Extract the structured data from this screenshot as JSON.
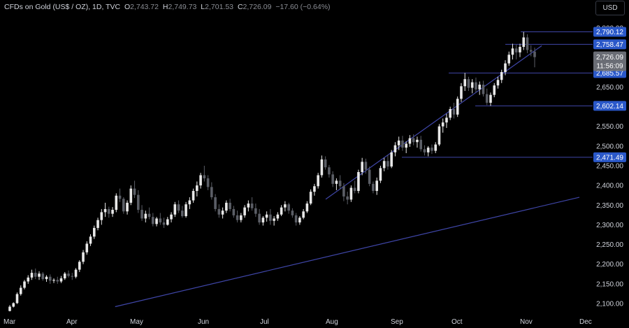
{
  "header": {
    "symbol": "CFDs on Gold (US$ / OZ), 1D, TVC",
    "open_label": "O",
    "open": "2,743.72",
    "high_label": "H",
    "high": "2,749.73",
    "low_label": "L",
    "low": "2,701.53",
    "close_label": "C",
    "close": "2,726.09",
    "change": "−17.60 (−0.64%)",
    "currency": "USD"
  },
  "chart_data": {
    "type": "candlestick",
    "x_labels": [
      "Mar",
      "Apr",
      "May",
      "Jun",
      "Jul",
      "Aug",
      "Sep",
      "Oct",
      "Nov",
      "Dec"
    ],
    "y_ticks": [
      "2,100.00",
      "2,150.00",
      "2,200.00",
      "2,250.00",
      "2,300.00",
      "2,350.00",
      "2,400.00",
      "2,450.00",
      "2,500.00",
      "2,550.00",
      "2,600.00",
      "2,650.00",
      "2,700.00",
      "2,750.00",
      "2,800.00"
    ],
    "y_tick_values": [
      2100,
      2150,
      2200,
      2250,
      2300,
      2350,
      2400,
      2450,
      2500,
      2550,
      2600,
      2650,
      2700,
      2750,
      2800
    ],
    "ylim": [
      2092,
      2812
    ],
    "grid": false,
    "price_levels": [
      {
        "value": 2790.12,
        "label": "2,790.12"
      },
      {
        "value": 2758.47,
        "label": "2,758.47"
      },
      {
        "value": 2685.57,
        "label": "2,685.57"
      },
      {
        "value": 2602.14,
        "label": "2,602.14"
      },
      {
        "value": 2471.49,
        "label": "2,471.49"
      }
    ],
    "last_price": {
      "value": 2726.09,
      "label": "2,726.09",
      "countdown": "11:56:09"
    },
    "candles": [
      [
        2081,
        2096,
        2080,
        2092
      ],
      [
        2092,
        2103,
        2090,
        2101
      ],
      [
        2101,
        2128,
        2099,
        2124
      ],
      [
        2124,
        2146,
        2120,
        2140
      ],
      [
        2140,
        2160,
        2136,
        2156
      ],
      [
        2156,
        2172,
        2150,
        2166
      ],
      [
        2166,
        2186,
        2160,
        2178
      ],
      [
        2178,
        2189,
        2162,
        2168
      ],
      [
        2168,
        2182,
        2160,
        2176
      ],
      [
        2176,
        2180,
        2158,
        2162
      ],
      [
        2162,
        2172,
        2155,
        2168
      ],
      [
        2168,
        2174,
        2150,
        2158
      ],
      [
        2158,
        2164,
        2152,
        2160
      ],
      [
        2160,
        2168,
        2150,
        2156
      ],
      [
        2156,
        2170,
        2152,
        2164
      ],
      [
        2164,
        2180,
        2160,
        2176
      ],
      [
        2176,
        2184,
        2166,
        2170
      ],
      [
        2170,
        2178,
        2160,
        2168
      ],
      [
        2168,
        2190,
        2164,
        2186
      ],
      [
        2186,
        2210,
        2180,
        2206
      ],
      [
        2206,
        2236,
        2200,
        2230
      ],
      [
        2230,
        2258,
        2224,
        2252
      ],
      [
        2252,
        2276,
        2246,
        2270
      ],
      [
        2270,
        2298,
        2264,
        2292
      ],
      [
        2292,
        2318,
        2286,
        2312
      ],
      [
        2312,
        2340,
        2300,
        2332
      ],
      [
        2332,
        2356,
        2320,
        2340
      ],
      [
        2340,
        2346,
        2318,
        2328
      ],
      [
        2328,
        2345,
        2320,
        2338
      ],
      [
        2338,
        2380,
        2332,
        2374
      ],
      [
        2374,
        2392,
        2358,
        2366
      ],
      [
        2366,
        2370,
        2328,
        2334
      ],
      [
        2334,
        2362,
        2326,
        2356
      ],
      [
        2356,
        2400,
        2350,
        2392
      ],
      [
        2392,
        2412,
        2368,
        2376
      ],
      [
        2376,
        2388,
        2330,
        2338
      ],
      [
        2338,
        2350,
        2310,
        2316
      ],
      [
        2316,
        2336,
        2306,
        2328
      ],
      [
        2328,
        2344,
        2314,
        2320
      ],
      [
        2320,
        2330,
        2296,
        2302
      ],
      [
        2302,
        2320,
        2296,
        2316
      ],
      [
        2316,
        2330,
        2300,
        2306
      ],
      [
        2306,
        2318,
        2292,
        2300
      ],
      [
        2300,
        2320,
        2298,
        2314
      ],
      [
        2314,
        2332,
        2306,
        2326
      ],
      [
        2326,
        2358,
        2320,
        2352
      ],
      [
        2352,
        2362,
        2330,
        2336
      ],
      [
        2336,
        2348,
        2318,
        2322
      ],
      [
        2322,
        2358,
        2318,
        2352
      ],
      [
        2352,
        2370,
        2340,
        2362
      ],
      [
        2362,
        2392,
        2356,
        2386
      ],
      [
        2386,
        2410,
        2372,
        2400
      ],
      [
        2400,
        2432,
        2392,
        2426
      ],
      [
        2426,
        2450,
        2410,
        2418
      ],
      [
        2418,
        2426,
        2388,
        2396
      ],
      [
        2396,
        2408,
        2364,
        2370
      ],
      [
        2370,
        2378,
        2334,
        2340
      ],
      [
        2340,
        2352,
        2318,
        2326
      ],
      [
        2326,
        2344,
        2316,
        2336
      ],
      [
        2336,
        2362,
        2330,
        2356
      ],
      [
        2356,
        2366,
        2334,
        2340
      ],
      [
        2340,
        2348,
        2318,
        2324
      ],
      [
        2324,
        2336,
        2306,
        2312
      ],
      [
        2312,
        2330,
        2306,
        2324
      ],
      [
        2324,
        2350,
        2318,
        2344
      ],
      [
        2344,
        2362,
        2334,
        2354
      ],
      [
        2354,
        2370,
        2336,
        2342
      ],
      [
        2342,
        2354,
        2320,
        2328
      ],
      [
        2328,
        2340,
        2300,
        2306
      ],
      [
        2306,
        2322,
        2298,
        2318
      ],
      [
        2318,
        2334,
        2308,
        2326
      ],
      [
        2326,
        2340,
        2300,
        2310
      ],
      [
        2310,
        2322,
        2298,
        2316
      ],
      [
        2316,
        2332,
        2310,
        2326
      ],
      [
        2326,
        2350,
        2322,
        2344
      ],
      [
        2344,
        2360,
        2334,
        2352
      ],
      [
        2352,
        2356,
        2328,
        2336
      ],
      [
        2336,
        2342,
        2318,
        2324
      ],
      [
        2324,
        2330,
        2298,
        2306
      ],
      [
        2306,
        2322,
        2300,
        2318
      ],
      [
        2318,
        2340,
        2314,
        2334
      ],
      [
        2334,
        2360,
        2330,
        2354
      ],
      [
        2354,
        2390,
        2350,
        2384
      ],
      [
        2384,
        2404,
        2374,
        2398
      ],
      [
        2398,
        2432,
        2392,
        2426
      ],
      [
        2426,
        2476,
        2420,
        2466
      ],
      [
        2466,
        2474,
        2440,
        2446
      ],
      [
        2446,
        2452,
        2420,
        2428
      ],
      [
        2428,
        2436,
        2396,
        2404
      ],
      [
        2404,
        2418,
        2388,
        2412
      ],
      [
        2412,
        2426,
        2390,
        2398
      ],
      [
        2398,
        2406,
        2360,
        2372
      ],
      [
        2372,
        2384,
        2352,
        2364
      ],
      [
        2364,
        2400,
        2358,
        2394
      ],
      [
        2394,
        2412,
        2380,
        2386
      ],
      [
        2386,
        2440,
        2380,
        2434
      ],
      [
        2434,
        2470,
        2426,
        2460
      ],
      [
        2460,
        2468,
        2430,
        2440
      ],
      [
        2440,
        2448,
        2398,
        2404
      ],
      [
        2404,
        2410,
        2380,
        2386
      ],
      [
        2386,
        2420,
        2376,
        2412
      ],
      [
        2412,
        2450,
        2406,
        2444
      ],
      [
        2444,
        2470,
        2436,
        2462
      ],
      [
        2462,
        2478,
        2440,
        2448
      ],
      [
        2448,
        2490,
        2444,
        2484
      ],
      [
        2484,
        2510,
        2474,
        2502
      ],
      [
        2502,
        2524,
        2490,
        2514
      ],
      [
        2514,
        2526,
        2488,
        2496
      ],
      [
        2496,
        2512,
        2482,
        2506
      ],
      [
        2506,
        2528,
        2498,
        2520
      ],
      [
        2520,
        2530,
        2502,
        2510
      ],
      [
        2510,
        2524,
        2496,
        2516
      ],
      [
        2516,
        2526,
        2486,
        2492
      ],
      [
        2492,
        2502,
        2476,
        2484
      ],
      [
        2484,
        2500,
        2474,
        2496
      ],
      [
        2496,
        2504,
        2480,
        2488
      ],
      [
        2488,
        2510,
        2482,
        2504
      ],
      [
        2504,
        2556,
        2500,
        2550
      ],
      [
        2550,
        2570,
        2534,
        2560
      ],
      [
        2560,
        2582,
        2546,
        2572
      ],
      [
        2572,
        2600,
        2566,
        2594
      ],
      [
        2594,
        2610,
        2570,
        2580
      ],
      [
        2580,
        2626,
        2574,
        2620
      ],
      [
        2620,
        2660,
        2612,
        2652
      ],
      [
        2652,
        2686,
        2640,
        2670
      ],
      [
        2670,
        2676,
        2640,
        2648
      ],
      [
        2648,
        2670,
        2634,
        2662
      ],
      [
        2662,
        2674,
        2636,
        2644
      ],
      [
        2644,
        2664,
        2630,
        2656
      ],
      [
        2656,
        2666,
        2626,
        2632
      ],
      [
        2632,
        2646,
        2604,
        2610
      ],
      [
        2610,
        2636,
        2602,
        2630
      ],
      [
        2630,
        2660,
        2624,
        2654
      ],
      [
        2654,
        2676,
        2646,
        2668
      ],
      [
        2668,
        2694,
        2660,
        2688
      ],
      [
        2688,
        2718,
        2680,
        2710
      ],
      [
        2710,
        2740,
        2704,
        2732
      ],
      [
        2732,
        2760,
        2720,
        2748
      ],
      [
        2748,
        2758,
        2720,
        2738
      ],
      [
        2738,
        2760,
        2726,
        2752
      ],
      [
        2752,
        2790,
        2744,
        2776
      ],
      [
        2776,
        2784,
        2736,
        2744
      ],
      [
        2744,
        2756,
        2728,
        2740
      ],
      [
        2740,
        2750,
        2700,
        2726
      ]
    ],
    "trendlines": [
      {
        "from": [
          "2024-04-24",
          2092
        ],
        "to": [
          "2024-12-01",
          2370
        ]
      },
      {
        "from": [
          "2024-08-01",
          2365
        ],
        "to": [
          "2024-11-12",
          2755
        ]
      }
    ]
  }
}
